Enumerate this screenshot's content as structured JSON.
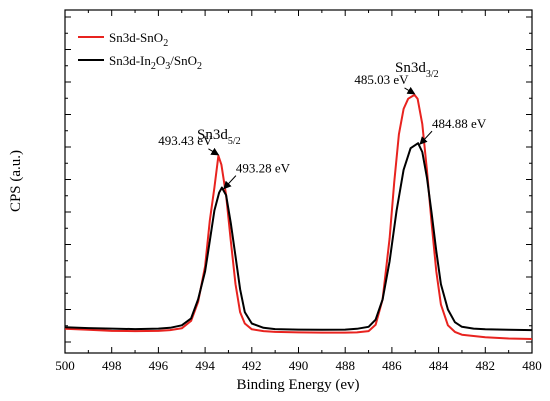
{
  "chart_data": {
    "type": "line",
    "xlabel": "Binding Energy (ev)",
    "ylabel": "CPS (a.u.)",
    "xlim": [
      500,
      480
    ],
    "x_reversed": true,
    "ylim": [
      0,
      100
    ],
    "y_ticks_labeled": false,
    "x_ticks": [
      "500",
      "498",
      "496",
      "494",
      "492",
      "490",
      "488",
      "486",
      "484",
      "482",
      "480"
    ],
    "legend": {
      "placement": "top-left"
    },
    "series": [
      {
        "name": "Sn3d-SnO2",
        "name_main": "Sn3d-SnO",
        "name_sub": "2",
        "color": "#e8231f",
        "points": [
          [
            500,
            4.4
          ],
          [
            499,
            4.0
          ],
          [
            498,
            3.6
          ],
          [
            497,
            3.5
          ],
          [
            496,
            3.6
          ],
          [
            495.5,
            3.9
          ],
          [
            495,
            4.6
          ],
          [
            494.6,
            7.5
          ],
          [
            494.3,
            15
          ],
          [
            494.0,
            29
          ],
          [
            493.8,
            47
          ],
          [
            493.6,
            60
          ],
          [
            493.43,
            72.5
          ],
          [
            493.3,
            69
          ],
          [
            493.1,
            57
          ],
          [
            492.9,
            39
          ],
          [
            492.7,
            22
          ],
          [
            492.5,
            11
          ],
          [
            492.3,
            6.5
          ],
          [
            492,
            4.2
          ],
          [
            491.5,
            3.5
          ],
          [
            491,
            3.2
          ],
          [
            490,
            3.0
          ],
          [
            489,
            2.9
          ],
          [
            488,
            2.9
          ],
          [
            487.5,
            3.0
          ],
          [
            487,
            3.5
          ],
          [
            486.7,
            6
          ],
          [
            486.4,
            16
          ],
          [
            486.1,
            40
          ],
          [
            485.9,
            62
          ],
          [
            485.7,
            81
          ],
          [
            485.5,
            91
          ],
          [
            485.3,
            95
          ],
          [
            485.03,
            96.5
          ],
          [
            484.9,
            95
          ],
          [
            484.7,
            85
          ],
          [
            484.5,
            67
          ],
          [
            484.3,
            46
          ],
          [
            484.1,
            27
          ],
          [
            483.9,
            14
          ],
          [
            483.6,
            5.8
          ],
          [
            483.3,
            3.2
          ],
          [
            483,
            2.1
          ],
          [
            482,
            1.1
          ],
          [
            481,
            0.6
          ],
          [
            480,
            0.4
          ]
        ]
      },
      {
        "name": "Sn3d-In2O3/SnO2",
        "name_parts": [
          "Sn3d-In",
          "2",
          "O",
          "3",
          "/SnO",
          "2"
        ],
        "color": "#000000",
        "points": [
          [
            500,
            5.0
          ],
          [
            499,
            4.7
          ],
          [
            498,
            4.5
          ],
          [
            497,
            4.3
          ],
          [
            496,
            4.5
          ],
          [
            495.5,
            4.8
          ],
          [
            495,
            5.8
          ],
          [
            494.6,
            8.5
          ],
          [
            494.3,
            16
          ],
          [
            494.0,
            27
          ],
          [
            493.8,
            39
          ],
          [
            493.6,
            51
          ],
          [
            493.4,
            58
          ],
          [
            493.28,
            60
          ],
          [
            493.1,
            57
          ],
          [
            492.9,
            46
          ],
          [
            492.7,
            33
          ],
          [
            492.5,
            20
          ],
          [
            492.3,
            11
          ],
          [
            492,
            6.5
          ],
          [
            491.5,
            4.8
          ],
          [
            491,
            4.3
          ],
          [
            490,
            4.1
          ],
          [
            489,
            4.0
          ],
          [
            488,
            4.1
          ],
          [
            487.5,
            4.4
          ],
          [
            487,
            5.2
          ],
          [
            486.7,
            8
          ],
          [
            486.4,
            16
          ],
          [
            486.1,
            31
          ],
          [
            485.8,
            51
          ],
          [
            485.5,
            67
          ],
          [
            485.2,
            75.5
          ],
          [
            484.88,
            77.5
          ],
          [
            484.7,
            74
          ],
          [
            484.5,
            64
          ],
          [
            484.3,
            50
          ],
          [
            484.1,
            35
          ],
          [
            483.9,
            22
          ],
          [
            483.6,
            12
          ],
          [
            483.3,
            7
          ],
          [
            483,
            5.2
          ],
          [
            482.5,
            4.5
          ],
          [
            482,
            4.2
          ],
          [
            481,
            4.0
          ],
          [
            480,
            3.9
          ]
        ]
      }
    ],
    "annotations": [
      {
        "text": "493.43 eV",
        "x": 493.43,
        "y": 72.5,
        "align": "left"
      },
      {
        "text": "493.28 eV",
        "x": 493.28,
        "y": 60,
        "align": "right"
      },
      {
        "text": "485.03 eV",
        "x": 485.03,
        "y": 96.5,
        "align": "left"
      },
      {
        "text": "484.88 eV",
        "x": 484.88,
        "y": 77.5,
        "align": "right"
      }
    ],
    "peak_labels": [
      {
        "main": "Sn3d",
        "sub": "5/2",
        "full": "Sn3d5/2"
      },
      {
        "main": "Sn3d",
        "sub": "3/2",
        "full": "Sn3d3/2"
      }
    ]
  }
}
